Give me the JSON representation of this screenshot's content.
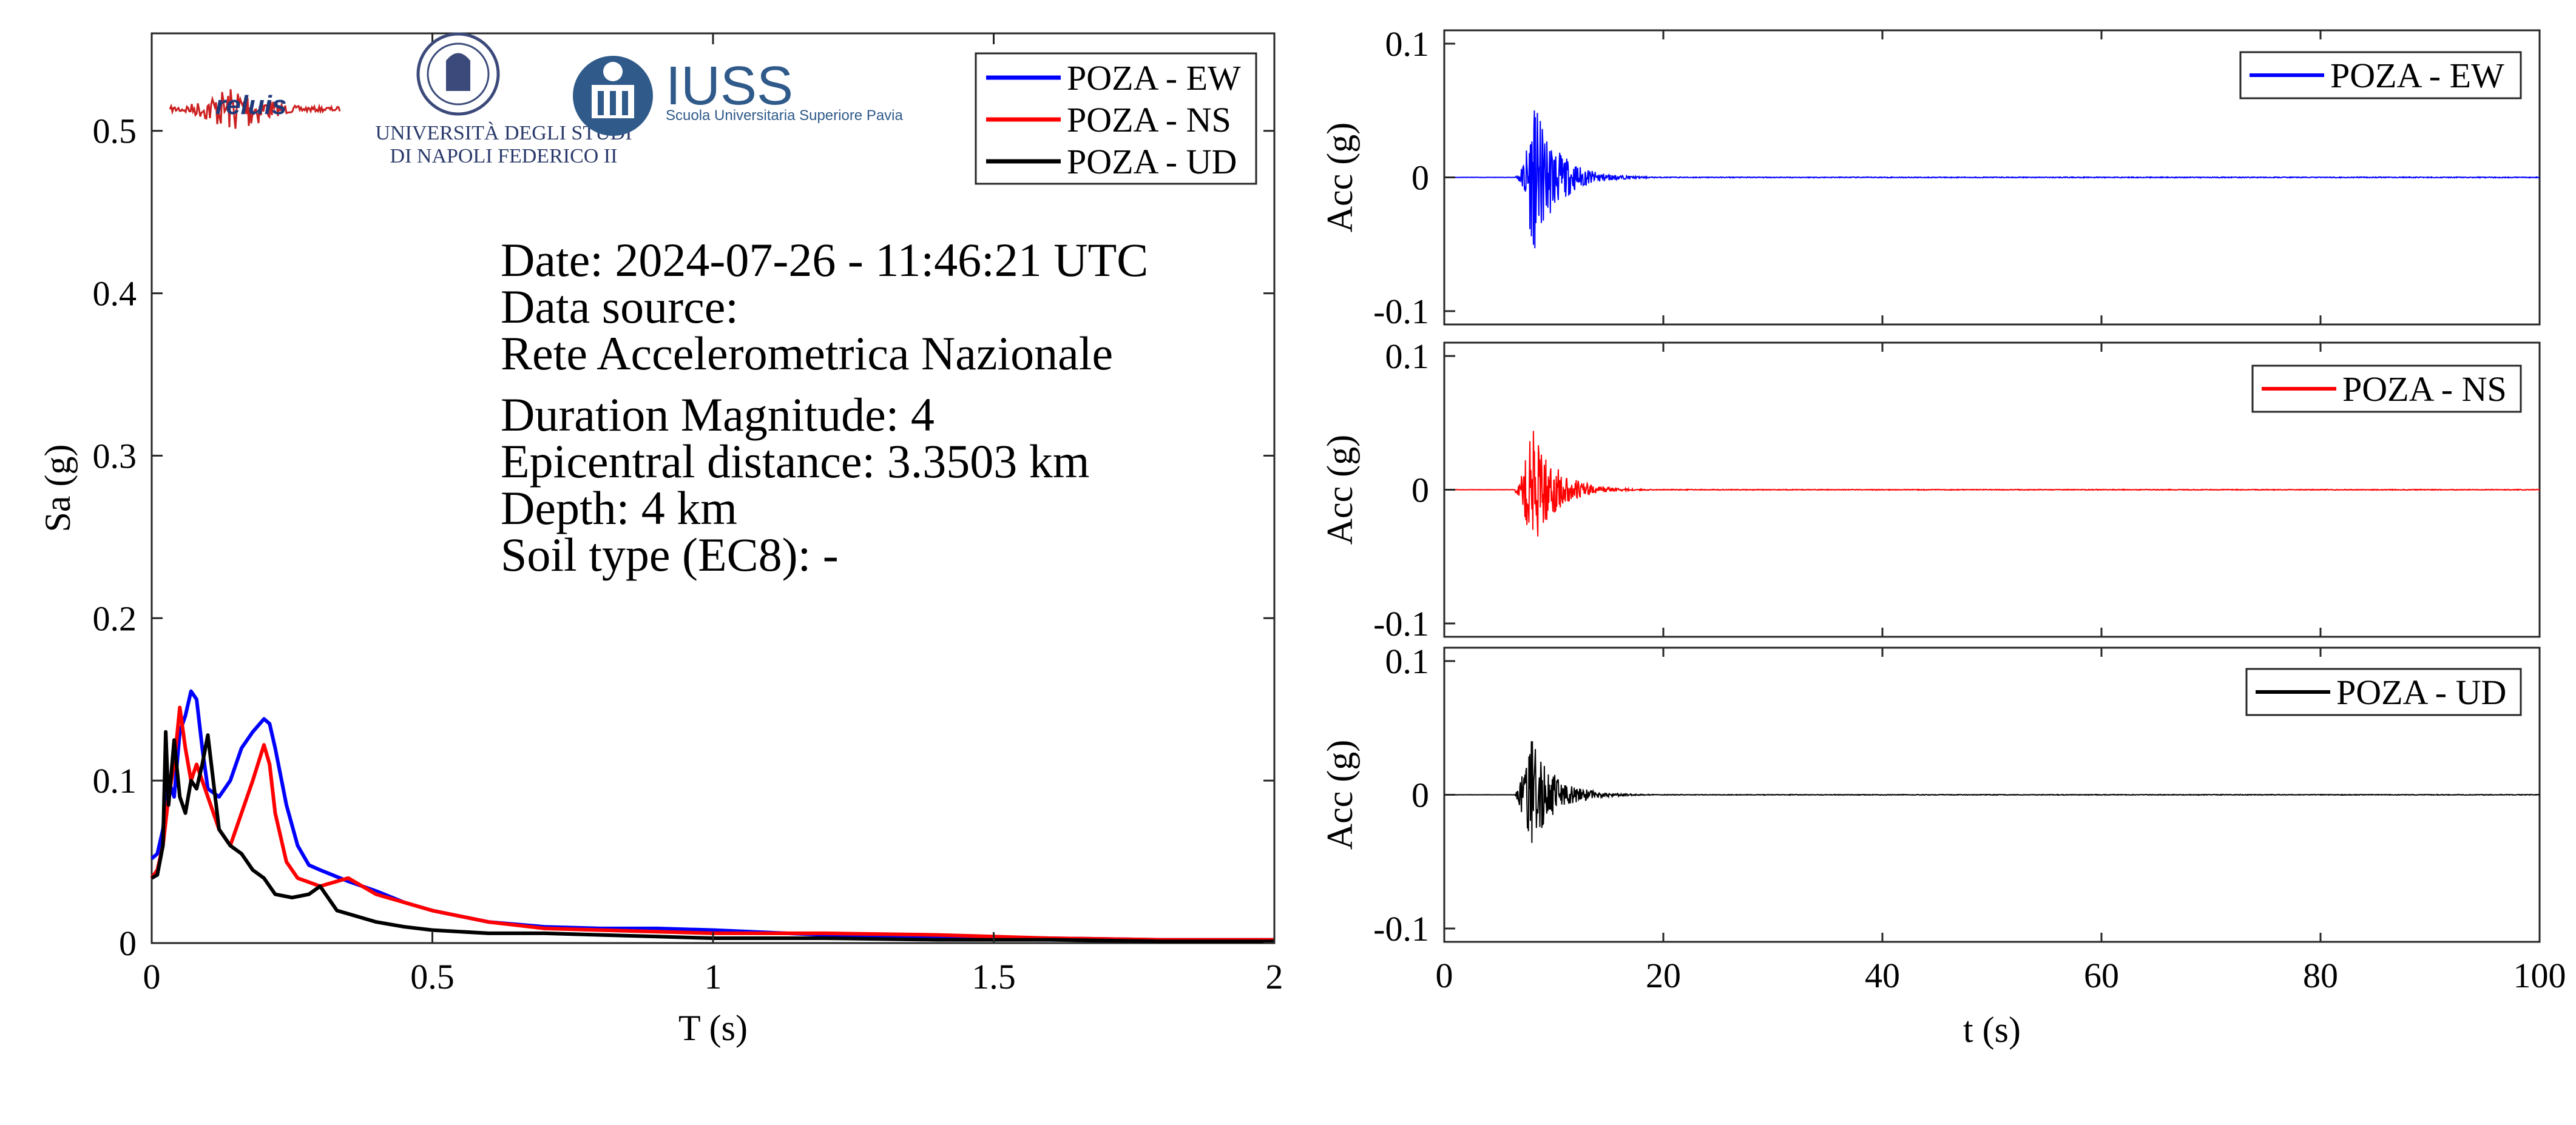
{
  "logos": {
    "reluis": "reluis",
    "unina_line1": "UNIVERSITÀ DEGLI STUDI",
    "unina_line2": "DI NAPOLI FEDERICO II",
    "iuss": "IUSS",
    "iuss_sub": "Scuola Universitaria Superiore Pavia"
  },
  "info": {
    "date": "Date: 2024-07-26 - 11:46:21 UTC",
    "source_label": "Data source:",
    "source": "Rete Accelerometrica Nazionale",
    "magnitude": "Duration Magnitude: 4",
    "distance": "Epicentral distance: 3.3503 km",
    "depth": "Depth: 4 km",
    "soil": "Soil type (EC8): -"
  },
  "colors": {
    "ew": "#0000ff",
    "ns": "#ff0000",
    "ud": "#000000"
  },
  "chart_data": [
    {
      "type": "line",
      "title": "",
      "xlabel": "T (s)",
      "ylabel": "Sa (g)",
      "xlim": [
        0,
        2
      ],
      "ylim": [
        0,
        0.56
      ],
      "xticks": [
        0,
        0.5,
        1,
        1.5,
        2
      ],
      "xtick_labels": [
        "0",
        "0.5",
        "1",
        "1.5",
        "2"
      ],
      "yticks": [
        0,
        0.1,
        0.2,
        0.3,
        0.4,
        0.5
      ],
      "ytick_labels": [
        "0",
        "0.1",
        "0.2",
        "0.3",
        "0.4",
        "0.5"
      ],
      "legend_position": "top-right",
      "series": [
        {
          "name": "POZA - EW",
          "color": "#0000ff",
          "x": [
            0,
            0.01,
            0.02,
            0.03,
            0.04,
            0.05,
            0.06,
            0.07,
            0.08,
            0.09,
            0.1,
            0.12,
            0.14,
            0.16,
            0.18,
            0.2,
            0.21,
            0.22,
            0.24,
            0.26,
            0.28,
            0.3,
            0.35,
            0.4,
            0.45,
            0.5,
            0.6,
            0.7,
            0.8,
            0.9,
            1.0,
            1.2,
            1.4,
            1.6,
            1.8,
            2.0
          ],
          "y": [
            0.052,
            0.055,
            0.07,
            0.1,
            0.09,
            0.13,
            0.14,
            0.155,
            0.15,
            0.12,
            0.095,
            0.09,
            0.1,
            0.12,
            0.13,
            0.138,
            0.135,
            0.12,
            0.085,
            0.06,
            0.048,
            0.045,
            0.038,
            0.032,
            0.025,
            0.02,
            0.013,
            0.01,
            0.009,
            0.009,
            0.008,
            0.005,
            0.004,
            0.003,
            0.002,
            0.002
          ]
        },
        {
          "name": "POZA - NS",
          "color": "#ff0000",
          "x": [
            0,
            0.01,
            0.02,
            0.03,
            0.04,
            0.05,
            0.06,
            0.07,
            0.08,
            0.09,
            0.1,
            0.12,
            0.14,
            0.16,
            0.18,
            0.2,
            0.21,
            0.22,
            0.24,
            0.26,
            0.3,
            0.35,
            0.4,
            0.45,
            0.5,
            0.6,
            0.7,
            0.8,
            0.9,
            1.0,
            1.2,
            1.4,
            1.6,
            1.8,
            2.0
          ],
          "y": [
            0.04,
            0.045,
            0.06,
            0.09,
            0.11,
            0.145,
            0.12,
            0.1,
            0.11,
            0.1,
            0.09,
            0.07,
            0.06,
            0.08,
            0.1,
            0.122,
            0.11,
            0.08,
            0.05,
            0.04,
            0.035,
            0.04,
            0.03,
            0.025,
            0.02,
            0.013,
            0.009,
            0.008,
            0.007,
            0.006,
            0.006,
            0.005,
            0.003,
            0.002,
            0.002
          ]
        },
        {
          "name": "POZA - UD",
          "color": "#000000",
          "x": [
            0,
            0.01,
            0.02,
            0.025,
            0.03,
            0.04,
            0.05,
            0.06,
            0.07,
            0.08,
            0.09,
            0.1,
            0.12,
            0.14,
            0.16,
            0.18,
            0.2,
            0.22,
            0.25,
            0.28,
            0.3,
            0.33,
            0.35,
            0.4,
            0.45,
            0.5,
            0.6,
            0.7,
            0.8,
            0.9,
            1.0,
            1.2,
            1.4,
            1.6,
            1.8,
            2.0
          ],
          "y": [
            0.04,
            0.042,
            0.06,
            0.13,
            0.085,
            0.125,
            0.09,
            0.08,
            0.1,
            0.095,
            0.11,
            0.128,
            0.07,
            0.06,
            0.055,
            0.045,
            0.04,
            0.03,
            0.028,
            0.03,
            0.035,
            0.02,
            0.018,
            0.013,
            0.01,
            0.008,
            0.006,
            0.006,
            0.005,
            0.004,
            0.003,
            0.003,
            0.002,
            0.002,
            0.001,
            0.001
          ]
        }
      ]
    },
    {
      "type": "line",
      "title": "",
      "xlabel": "",
      "ylabel": "Acc (g)",
      "xlim": [
        0,
        100
      ],
      "ylim": [
        -0.11,
        0.11
      ],
      "yticks": [
        -0.1,
        0,
        0.1
      ],
      "ytick_labels": [
        "-0.1",
        "0",
        "0.1"
      ],
      "legend_position": "top-right",
      "series": [
        {
          "name": "POZA - EW",
          "color": "#0000ff",
          "onset": 6.5,
          "peak_time": 8.3,
          "pga_pos": 0.045,
          "pga_neg": -0.053,
          "t_end": 100
        }
      ]
    },
    {
      "type": "line",
      "title": "",
      "xlabel": "",
      "ylabel": "Acc (g)",
      "xlim": [
        0,
        100
      ],
      "ylim": [
        -0.11,
        0.11
      ],
      "yticks": [
        -0.1,
        0,
        0.1
      ],
      "ytick_labels": [
        "-0.1",
        "0",
        "0.1"
      ],
      "legend_position": "top-right",
      "series": [
        {
          "name": "POZA - NS",
          "color": "#ff0000",
          "onset": 6.5,
          "peak_time": 8.1,
          "pga_pos": 0.044,
          "pga_neg": -0.03,
          "t_end": 100
        }
      ]
    },
    {
      "type": "line",
      "title": "",
      "xlabel": "t (s)",
      "ylabel": "Acc (g)",
      "xlim": [
        0,
        100
      ],
      "ylim": [
        -0.11,
        0.11
      ],
      "xticks": [
        0,
        20,
        40,
        60,
        80,
        100
      ],
      "xtick_labels": [
        "0",
        "20",
        "40",
        "60",
        "80",
        "100"
      ],
      "yticks": [
        -0.1,
        0,
        0.1
      ],
      "ytick_labels": [
        "-0.1",
        "0",
        "0.1"
      ],
      "legend_position": "top-right",
      "series": [
        {
          "name": "POZA - UD",
          "color": "#000000",
          "onset": 6.5,
          "peak_time": 8.0,
          "pga_pos": 0.04,
          "pga_neg": -0.036,
          "t_end": 100
        }
      ]
    }
  ]
}
